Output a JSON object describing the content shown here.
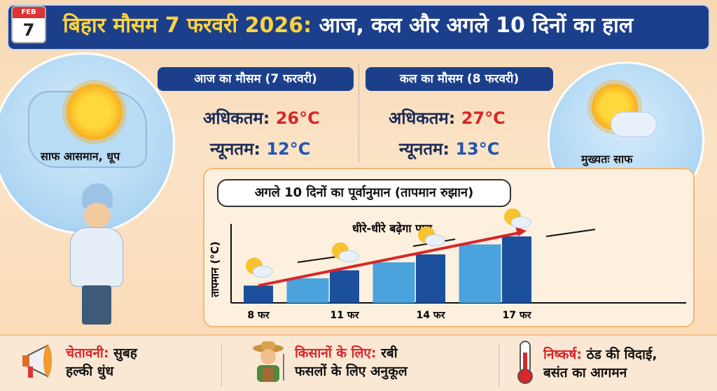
{
  "header": {
    "calendar_month": "FEB",
    "calendar_day": "7",
    "title_highlight": "बिहार मौसम 7 फरवरी 2026:",
    "title_rest": " आज, कल और अगले 10 दिनों का हाल"
  },
  "today": {
    "banner": "आज का मौसम (7 फरवरी)",
    "max_label": "अधिकतम:",
    "max_value": "26°C",
    "min_label": "न्यूनतम:",
    "min_value": "12°C",
    "condition": "साफ आसमान, धूप"
  },
  "tomorrow": {
    "banner": "कल का मौसम (8 फरवरी)",
    "max_label": "अधिकतम:",
    "max_value": "27°C",
    "min_label": "न्यूनतम:",
    "min_value": "13°C",
    "condition": "मुख्यतः साफ"
  },
  "chart_data": {
    "type": "bar",
    "title": "अगले 10 दिनों का पूर्वानुमान (तापमान रुझान)",
    "ylabel": "तापमान (°C)",
    "annotation": "धीरे-धीरे बढ़ेगा पारा",
    "tick_labels": [
      "8 फर",
      "",
      "11 फर",
      "",
      "14 फर",
      "",
      "17 फर"
    ],
    "values": [
      26,
      37,
      49,
      61,
      73,
      88,
      100
    ],
    "bar_colors": [
      "#1c4f9c",
      "#4aa3dc",
      "#1c4f9c",
      "#4aa3dc",
      "#1c4f9c",
      "#4aa3dc",
      "#1c4f9c"
    ],
    "trend_color": "#d8262a",
    "grid": false
  },
  "bottom": [
    {
      "icon": "megaphone-icon",
      "highlight": "चेतावनी:",
      "text1": " सुबह",
      "text2": "हल्की धुंध"
    },
    {
      "icon": "farmer-icon",
      "highlight": "किसानों के लिए:",
      "text1": " रबी",
      "text2": "फसलों के लिए अनुकूल"
    },
    {
      "icon": "thermometer-icon",
      "highlight": "निष्कर्ष:",
      "text1": " ठंड की विदाई,",
      "text2": "बसंत का आगमन"
    }
  ]
}
